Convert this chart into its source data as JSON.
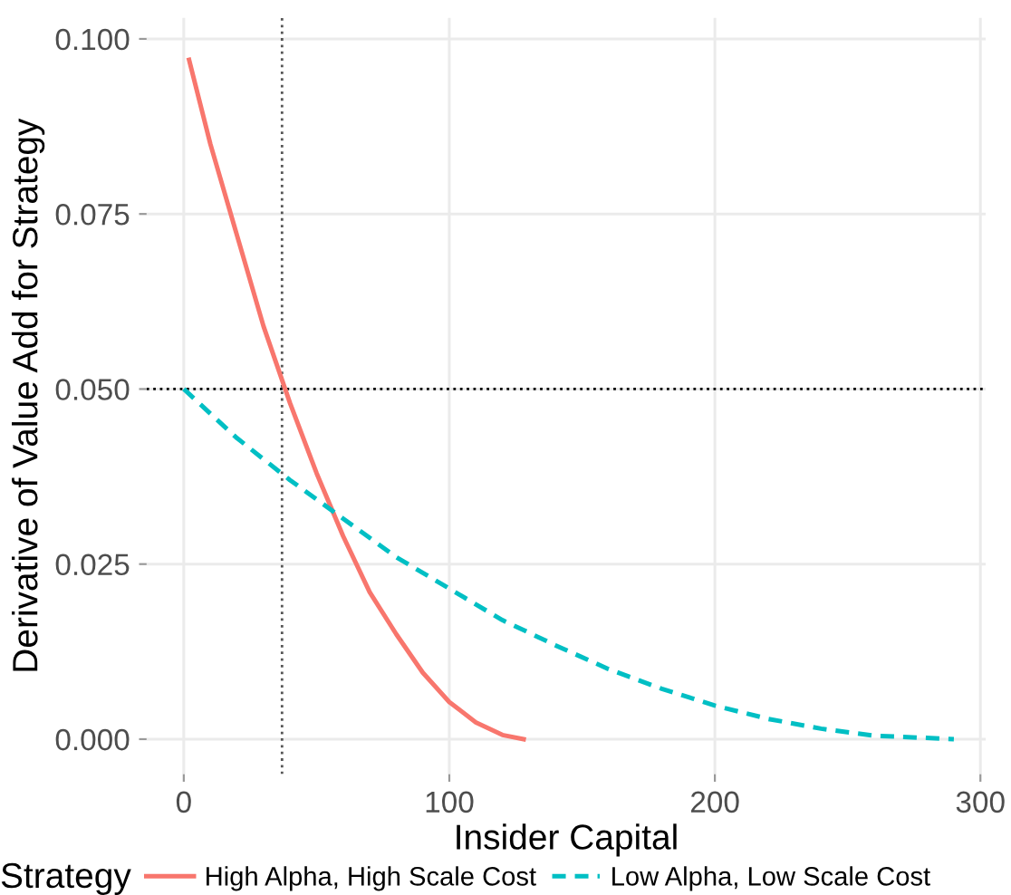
{
  "chart_data": {
    "type": "line",
    "xlabel": "Insider Capital",
    "ylabel": "Derivative of Value Add for Strategy",
    "legend_title": "Strategy",
    "legend": "bottom",
    "grid": true,
    "xlim": [
      -14,
      302
    ],
    "xticks": [
      0,
      100,
      200,
      300
    ],
    "ylim": [
      -0.005,
      0.103
    ],
    "yticks": [
      {
        "value": 0,
        "label": "0.000"
      },
      {
        "value": 0.025,
        "label": "0.025"
      },
      {
        "value": 0.05,
        "label": "0.050"
      },
      {
        "value": 0.075,
        "label": "0.075"
      },
      {
        "value": 0.1,
        "label": "0.100"
      }
    ],
    "series": [
      {
        "name": "High Alpha, High Scale Cost",
        "color": "#f8766d",
        "line_style": "solid",
        "x": [
          2,
          10,
          20,
          30,
          40,
          50,
          60,
          70,
          80,
          90,
          100,
          110,
          120,
          128
        ],
        "values": [
          0.097,
          0.085,
          0.072,
          0.059,
          0.048,
          0.038,
          0.029,
          0.021,
          0.015,
          0.0095,
          0.0053,
          0.0024,
          0.0006,
          0
        ]
      },
      {
        "name": "Low Alpha, Low Scale Cost",
        "color": "#00bfc4",
        "line_style": "dashed",
        "x": [
          0,
          20,
          40,
          60,
          80,
          100,
          120,
          140,
          160,
          180,
          200,
          220,
          240,
          260,
          290
        ],
        "values": [
          0.05,
          0.043,
          0.037,
          0.0315,
          0.026,
          0.0215,
          0.017,
          0.0134,
          0.01,
          0.0072,
          0.0048,
          0.0029,
          0.0015,
          0.0005,
          0
        ]
      }
    ],
    "ref_lines": [
      {
        "axis": "x",
        "value": 37,
        "line_style": "dotted",
        "color": "#555555"
      },
      {
        "axis": "y",
        "value": 0.05,
        "line_style": "dotted",
        "color": "#000000"
      }
    ]
  }
}
